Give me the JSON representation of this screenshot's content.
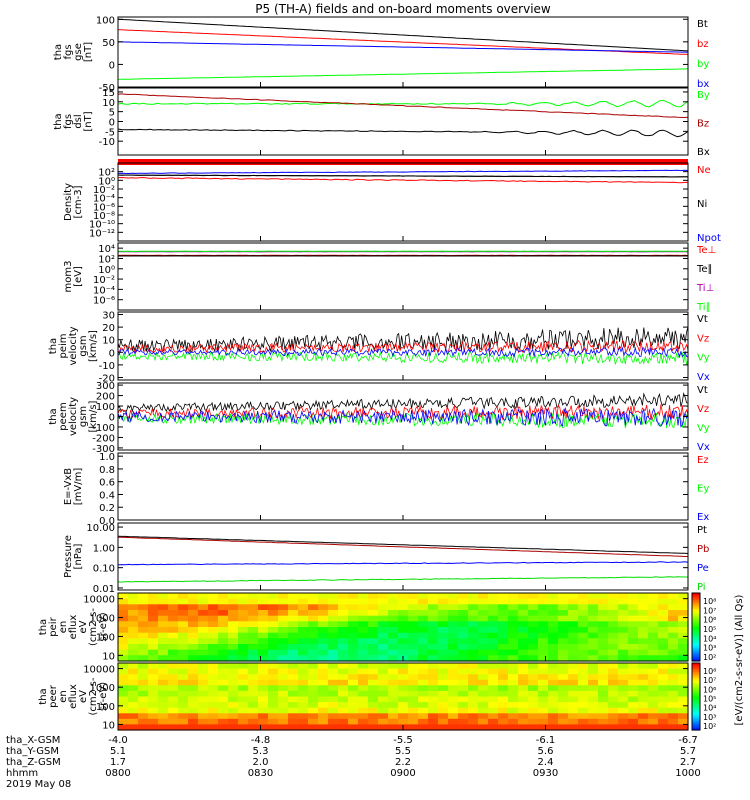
{
  "title": "P5 (TH-A) fields and on-board moments overview",
  "chart_data": {
    "type": "line",
    "x_axis": {
      "range": [
        0,
        120
      ],
      "unit": "minutes",
      "rows": [
        {
          "label": "tha_X-GSM",
          "values": [
            "-4.0",
            "-4.8",
            "-5.5",
            "-6.1",
            "-6.7"
          ]
        },
        {
          "label": "tha_Y-GSM",
          "values": [
            "5.1",
            "5.3",
            "5.5",
            "5.6",
            "5.7"
          ]
        },
        {
          "label": "tha_Z-GSM",
          "values": [
            "1.7",
            "2.0",
            "2.2",
            "2.4",
            "2.7"
          ]
        },
        {
          "label": "hhmm",
          "values": [
            "0800",
            "0830",
            "0900",
            "0930",
            "1000"
          ]
        }
      ],
      "date": "2019 May 08"
    },
    "panels": [
      {
        "id": "fgs-gse",
        "ylabel": [
          "tha",
          "fgs",
          "gse",
          "[nT]"
        ],
        "scale": "linear",
        "ylim": [
          -50,
          105
        ],
        "ticks": [
          {
            "v": 100,
            "t": "100"
          },
          {
            "v": 50,
            "t": "50"
          },
          {
            "v": 0,
            "t": "0"
          },
          {
            "v": -50,
            "t": "-50"
          }
        ],
        "series": [
          {
            "name": "Bt",
            "color": "#000000",
            "kind": "linear",
            "start": 100,
            "end": 30,
            "noise": 0.3
          },
          {
            "name": "bz",
            "color": "#ff0000",
            "kind": "linear",
            "start": 77,
            "end": 22,
            "noise": 0.3
          },
          {
            "name": "by",
            "color": "#00ff00",
            "kind": "linear",
            "start": -33,
            "end": -10,
            "noise": 0.3
          },
          {
            "name": "bx",
            "color": "#0000ff",
            "kind": "linear",
            "start": 50,
            "end": 27,
            "noise": 0.3
          }
        ]
      },
      {
        "id": "fgs-dsl",
        "ylabel": [
          "tha",
          "fgs",
          "dsl",
          "[nT]"
        ],
        "scale": "linear",
        "ylim": [
          -17,
          17
        ],
        "ticks": [
          {
            "v": 15,
            "t": "15"
          },
          {
            "v": 10,
            "t": "10"
          },
          {
            "v": 5,
            "t": "5"
          },
          {
            "v": 0,
            "t": "0"
          },
          {
            "v": -5,
            "t": "-5"
          },
          {
            "v": -10,
            "t": "-10"
          }
        ],
        "series": [
          {
            "name": "By",
            "color": "#00ff00",
            "kind": "wavy",
            "start": 9,
            "end": 9,
            "noise": 0.6,
            "wave": 1.5
          },
          {
            "name": "Bz",
            "color": "#aa0000",
            "kind": "linear",
            "start": 14,
            "end": 2,
            "noise": 0.3,
            "wave": 0.8
          },
          {
            "name": "Bx",
            "color": "#000000",
            "kind": "wavy",
            "start": -4,
            "end": -6,
            "noise": 0.4,
            "wave": 1.5
          }
        ]
      },
      {
        "id": "density",
        "ylabel": [
          "Density",
          "[cm-3]"
        ],
        "scale": "log",
        "ylim": [
          -14,
          4
        ],
        "ticks": [
          {
            "v": 2,
            "t": "10²"
          },
          {
            "v": 0,
            "t": "10⁰"
          },
          {
            "v": -2,
            "t": "10⁻²"
          },
          {
            "v": -4,
            "t": "10⁻⁴"
          },
          {
            "v": -6,
            "t": "10⁻⁶"
          },
          {
            "v": -8,
            "t": "10⁻⁸"
          },
          {
            "v": -10,
            "t": "10⁻¹⁰"
          },
          {
            "v": -12,
            "t": "10⁻¹²"
          }
        ],
        "series": [
          {
            "name": "Ne",
            "color": "#ff0000",
            "kind": "linear",
            "start": 0.6,
            "end": -0.5,
            "noise": 0.2
          },
          {
            "name": "Ni",
            "color": "#000000",
            "kind": "linear",
            "start": 1.2,
            "end": 0.8,
            "noise": 0.1
          },
          {
            "name": "Npot",
            "color": "#0000ff",
            "kind": "linear",
            "start": 1.6,
            "end": 2.3,
            "noise": 0.1
          }
        ]
      },
      {
        "id": "temperature",
        "ylabel": [
          "mom3",
          "[eV]"
        ],
        "scale": "log",
        "ylim": [
          -8,
          5
        ],
        "ticks": [
          {
            "v": 4,
            "t": "10⁴"
          },
          {
            "v": 2,
            "t": "10²"
          },
          {
            "v": 0,
            "t": "10⁰"
          },
          {
            "v": -2,
            "t": "10⁻²"
          },
          {
            "v": -4,
            "t": "10⁻⁴"
          },
          {
            "v": -6,
            "t": "10⁻⁶"
          }
        ],
        "series": [
          {
            "name": "Te⊥",
            "color": "#ff0000",
            "kind": "linear",
            "start": 2.6,
            "end": 2.6,
            "noise": 0.05
          },
          {
            "name": "Te∥",
            "color": "#000000",
            "kind": "linear",
            "start": 2.5,
            "end": 2.5,
            "noise": 0.05
          },
          {
            "name": "Ti⊥",
            "color": "#aa00aa",
            "kind": "linear",
            "start": 3.3,
            "end": 3.3,
            "noise": 0.05
          },
          {
            "name": "Ti∥",
            "color": "#00ff00",
            "kind": "linear",
            "start": 3.4,
            "end": 3.4,
            "noise": 0.05
          }
        ]
      },
      {
        "id": "peim-velocity",
        "ylabel": [
          "tha",
          "peim",
          "velocity",
          "gsm",
          "[km/s]"
        ],
        "scale": "linear",
        "ylim": [
          -22,
          32
        ],
        "ticks": [
          {
            "v": 30,
            "t": "30"
          },
          {
            "v": 20,
            "t": "20"
          },
          {
            "v": 10,
            "t": "10"
          },
          {
            "v": 0,
            "t": "0"
          },
          {
            "v": -10,
            "t": "-10"
          },
          {
            "v": -20,
            "t": "-20"
          }
        ],
        "series": [
          {
            "name": "Vt",
            "color": "#000000",
            "kind": "noisy",
            "start": 5,
            "end": 12,
            "noise": 7
          },
          {
            "name": "Vz",
            "color": "#ff0000",
            "kind": "noisy",
            "start": 3,
            "end": 5,
            "noise": 4
          },
          {
            "name": "Vy",
            "color": "#00ff00",
            "kind": "noisy",
            "start": -3,
            "end": -5,
            "noise": 4
          },
          {
            "name": "Vx",
            "color": "#0000ff",
            "kind": "noisy",
            "start": 0,
            "end": 0,
            "noise": 3
          }
        ]
      },
      {
        "id": "peem-velocity",
        "ylabel": [
          "tha",
          "peem",
          "velocity",
          "gsm",
          "[km/s]"
        ],
        "scale": "linear",
        "ylim": [
          -320,
          320
        ],
        "ticks": [
          {
            "v": 300,
            "t": "300"
          },
          {
            "v": 200,
            "t": "200"
          },
          {
            "v": 100,
            "t": "100"
          },
          {
            "v": 0,
            "t": "0"
          },
          {
            "v": -100,
            "t": "-100"
          },
          {
            "v": -200,
            "t": "-200"
          },
          {
            "v": -300,
            "t": "-300"
          }
        ],
        "series": [
          {
            "name": "Vt",
            "color": "#000000",
            "kind": "noisy",
            "start": 80,
            "end": 160,
            "noise": 50
          },
          {
            "name": "Vz",
            "color": "#ff0000",
            "kind": "noisy",
            "start": 30,
            "end": 40,
            "noise": 60
          },
          {
            "name": "Vy",
            "color": "#00ff00",
            "kind": "noisy",
            "start": -20,
            "end": -40,
            "noise": 60
          },
          {
            "name": "Vx",
            "color": "#0000ff",
            "kind": "noisy",
            "start": 0,
            "end": -10,
            "noise": 70
          }
        ]
      },
      {
        "id": "efield",
        "ylabel": [
          "E=-VxB",
          "[mV/m]"
        ],
        "scale": "linear",
        "ylim": [
          0,
          1.05
        ],
        "ticks": [
          {
            "v": 1.0,
            "t": "1.0"
          },
          {
            "v": 0.8,
            "t": "0.8"
          },
          {
            "v": 0.6,
            "t": "0.6"
          },
          {
            "v": 0.4,
            "t": "0.4"
          },
          {
            "v": 0.2,
            "t": "0.2"
          },
          {
            "v": 0.0,
            "t": "0.0"
          }
        ],
        "series": [
          {
            "name": "Ez",
            "color": "#ff0000",
            "kind": "none"
          },
          {
            "name": "Ey",
            "color": "#00ff00",
            "kind": "none"
          },
          {
            "name": "Ex",
            "color": "#0000ff",
            "kind": "none"
          }
        ]
      },
      {
        "id": "pressure",
        "ylabel": [
          "Pressure",
          "[nPa]"
        ],
        "scale": "log",
        "ylim": [
          -2.1,
          1.2
        ],
        "ticks": [
          {
            "v": 1,
            "t": "10.00"
          },
          {
            "v": 0,
            "t": "1.00"
          },
          {
            "v": -1,
            "t": "0.10"
          },
          {
            "v": -2,
            "t": "0.01"
          }
        ],
        "series": [
          {
            "name": "Pt",
            "color": "#000000",
            "kind": "linear",
            "start": 0.55,
            "end": -0.3,
            "noise": 0.01
          },
          {
            "name": "Pb",
            "color": "#aa0000",
            "kind": "linear",
            "start": 0.5,
            "end": -0.45,
            "noise": 0.01
          },
          {
            "name": "Pe",
            "color": "#0000ff",
            "kind": "linear",
            "start": -0.85,
            "end": -0.72,
            "noise": 0.03
          },
          {
            "name": "Pi",
            "color": "#00dd00",
            "kind": "linear",
            "start": -1.7,
            "end": -1.45,
            "noise": 0.03
          }
        ]
      },
      {
        "id": "peir-spectrogram",
        "ylabel": [
          "tha",
          "peir",
          "en",
          "eflux",
          "eV",
          "(cm2-s-",
          "sr-eV)"
        ],
        "scale": "log",
        "ylim": [
          0.7,
          4.3
        ],
        "kind": "spectrogram",
        "ticks": [
          {
            "v": 4,
            "t": "10000"
          },
          {
            "v": 3,
            "t": "1000"
          },
          {
            "v": 2,
            "t": "100"
          },
          {
            "v": 1,
            "t": "10"
          }
        ]
      },
      {
        "id": "peer-spectrogram",
        "ylabel": [
          "tha",
          "peer",
          "en",
          "eflux",
          "eV",
          "(cm2-s-",
          "sr-eV)"
        ],
        "scale": "log",
        "ylim": [
          0.7,
          4.3
        ],
        "kind": "spectrogram",
        "ticks": [
          {
            "v": 4,
            "t": "10000"
          },
          {
            "v": 3,
            "t": "1000"
          },
          {
            "v": 2,
            "t": "100"
          },
          {
            "v": 1,
            "t": "10"
          }
        ]
      }
    ],
    "colorbar": {
      "label": "[eV/(cm2-s-sr-eV)] (All Qs)",
      "ticks_top": [
        "10⁸",
        "10⁷",
        "10⁶",
        "10⁵",
        "10⁴",
        "10³",
        "10²"
      ],
      "ticks_bottom": [
        "10⁸",
        "10⁷",
        "10⁶",
        "10⁵",
        "10⁴",
        "10³",
        "10²"
      ]
    }
  }
}
